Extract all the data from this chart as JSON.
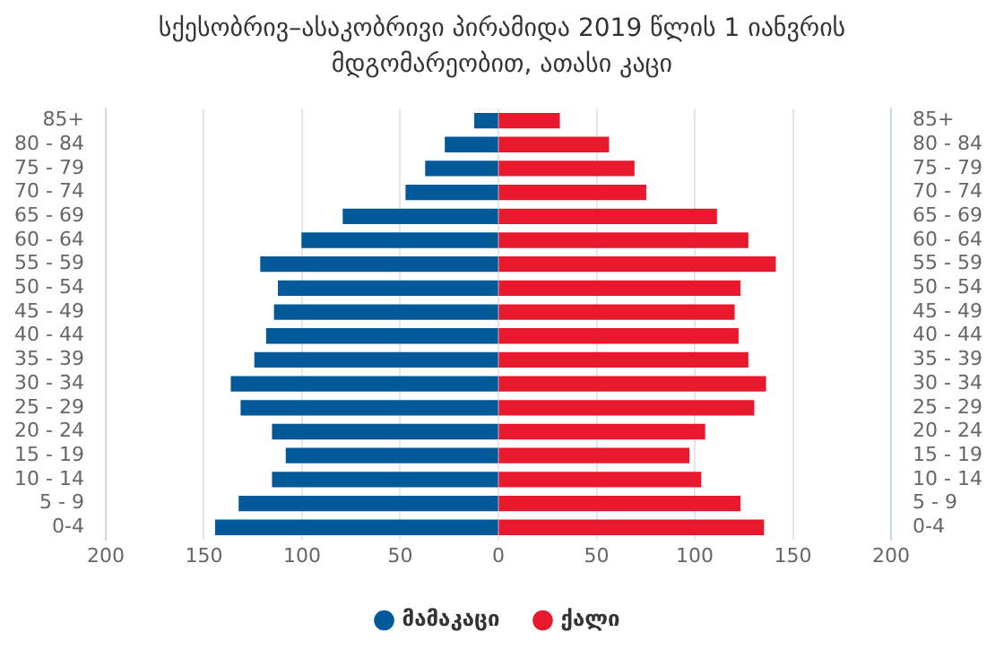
{
  "chart_data": {
    "type": "bar",
    "orientation": "horizontal",
    "stacked": true,
    "title": "სქესობრივ–ასაკობრივი პირამიდა 2019 წლის 1 იანვრის მდგომარეობით, ათასი კაცი",
    "categories": [
      "85+",
      "80 - 84",
      "75 - 79",
      "70 - 74",
      "65 - 69",
      "60 - 64",
      "55 - 59",
      "50 - 54",
      "45 - 49",
      "40 - 44",
      "35 - 39",
      "30 - 34",
      "25 - 29",
      "20 - 24",
      "15 - 19",
      "10 - 14",
      "5 - 9",
      "0-4"
    ],
    "series": [
      {
        "name": "მამაკაცი",
        "color": "#005a9a",
        "values": [
          -12,
          -27,
          -37,
          -47,
          -79,
          -100,
          -121,
          -112,
          -114,
          -118,
          -124,
          -136,
          -131,
          -115,
          -108,
          -115,
          -132,
          -144
        ]
      },
      {
        "name": "ქალი",
        "color": "#e8192c",
        "values": [
          31,
          56,
          69,
          75,
          111,
          127,
          141,
          123,
          120,
          122,
          127,
          136,
          130,
          105,
          97,
          103,
          123,
          135
        ]
      }
    ],
    "xlim": [
      -200,
      200
    ],
    "xticks": [
      {
        "value": -200,
        "label": "200"
      },
      {
        "value": -150,
        "label": "150"
      },
      {
        "value": -100,
        "label": "100"
      },
      {
        "value": -50,
        "label": "50"
      },
      0,
      50,
      100,
      150,
      200
    ],
    "grid": "x",
    "legend": "bottom"
  }
}
